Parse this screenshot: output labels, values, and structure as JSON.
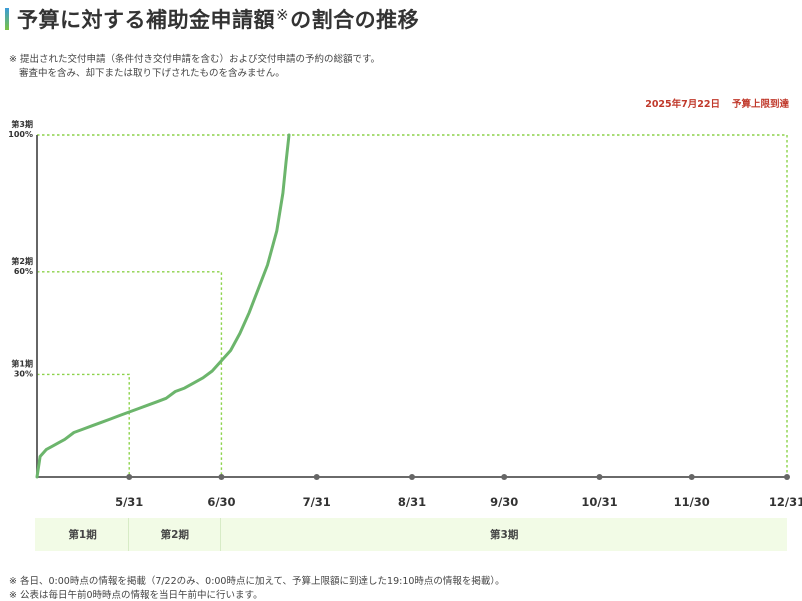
{
  "header": {
    "title_main": "予算に対する補助金申請額",
    "title_mark": "※",
    "title_tail": "の割合の推移"
  },
  "notes": {
    "line1": "※ 提出された交付申請（条件付き交付申請を含む）および交付申請の予約の総額です。",
    "line2": "審査中を含み、却下または取り下げされたものを含みません。"
  },
  "status": {
    "date": "2025年7月22日",
    "label": "予算上限到達",
    "color": "#c0392b"
  },
  "footer": {
    "line1": "※ 各日、0:00時点の情報を掲載（7/22のみ、0:00時点に加えて、予算上限額に到達した19:10時点の情報を掲載）。",
    "line2": "※ 公表は毎日午前0時時点の情報を当日午前中に行います。"
  },
  "phases": [
    {
      "label": "第1期",
      "start": "2025-05-01",
      "end": "2025-05-31"
    },
    {
      "label": "第2期",
      "start": "2025-05-31",
      "end": "2025-06-30"
    },
    {
      "label": "第3期",
      "start": "2025-06-30",
      "end": "2025-12-31"
    }
  ],
  "chart_data": {
    "type": "line",
    "title": "",
    "xlabel": "",
    "ylabel": "",
    "x_range": [
      "2025-05-01",
      "2025-12-31"
    ],
    "ylim": [
      0,
      100
    ],
    "x_ticks": [
      {
        "date": "2025-05-31",
        "label": "5/31"
      },
      {
        "date": "2025-06-30",
        "label": "6/30"
      },
      {
        "date": "2025-07-31",
        "label": "7/31"
      },
      {
        "date": "2025-08-31",
        "label": "8/31"
      },
      {
        "date": "2025-09-30",
        "label": "9/30"
      },
      {
        "date": "2025-10-31",
        "label": "10/31"
      },
      {
        "date": "2025-11-30",
        "label": "11/30"
      },
      {
        "date": "2025-12-31",
        "label": "12/31"
      }
    ],
    "thresholds": [
      {
        "period": "第1期",
        "percent_label": "30%",
        "value": 30,
        "end": "2025-05-31"
      },
      {
        "period": "第2期",
        "percent_label": "60%",
        "value": 60,
        "end": "2025-06-30"
      },
      {
        "period": "第3期",
        "percent_label": "100%",
        "value": 100,
        "end": "2025-12-31"
      }
    ],
    "colors": {
      "line": "#6cb56c",
      "threshold": "#8cd24a",
      "axis": "#555555",
      "tick_dot": "#666666"
    },
    "series": [
      {
        "values": [
          [
            "2025-05-01",
            0
          ],
          [
            "2025-05-02",
            6
          ],
          [
            "2025-05-04",
            8
          ],
          [
            "2025-05-06",
            9
          ],
          [
            "2025-05-08",
            10
          ],
          [
            "2025-05-10",
            11
          ],
          [
            "2025-05-13",
            13
          ],
          [
            "2025-05-16",
            14
          ],
          [
            "2025-05-19",
            15
          ],
          [
            "2025-05-22",
            16
          ],
          [
            "2025-05-25",
            17
          ],
          [
            "2025-05-28",
            18
          ],
          [
            "2025-05-31",
            19
          ],
          [
            "2025-06-03",
            20
          ],
          [
            "2025-06-06",
            21
          ],
          [
            "2025-06-09",
            22
          ],
          [
            "2025-06-12",
            23
          ],
          [
            "2025-06-15",
            25
          ],
          [
            "2025-06-18",
            26
          ],
          [
            "2025-06-21",
            27.5
          ],
          [
            "2025-06-24",
            29
          ],
          [
            "2025-06-27",
            31
          ],
          [
            "2025-06-30",
            34
          ],
          [
            "2025-07-03",
            37
          ],
          [
            "2025-07-06",
            42
          ],
          [
            "2025-07-09",
            48
          ],
          [
            "2025-07-12",
            55
          ],
          [
            "2025-07-15",
            62
          ],
          [
            "2025-07-18",
            72
          ],
          [
            "2025-07-20",
            83
          ],
          [
            "2025-07-21",
            92
          ],
          [
            "2025-07-22",
            100
          ]
        ]
      }
    ]
  }
}
